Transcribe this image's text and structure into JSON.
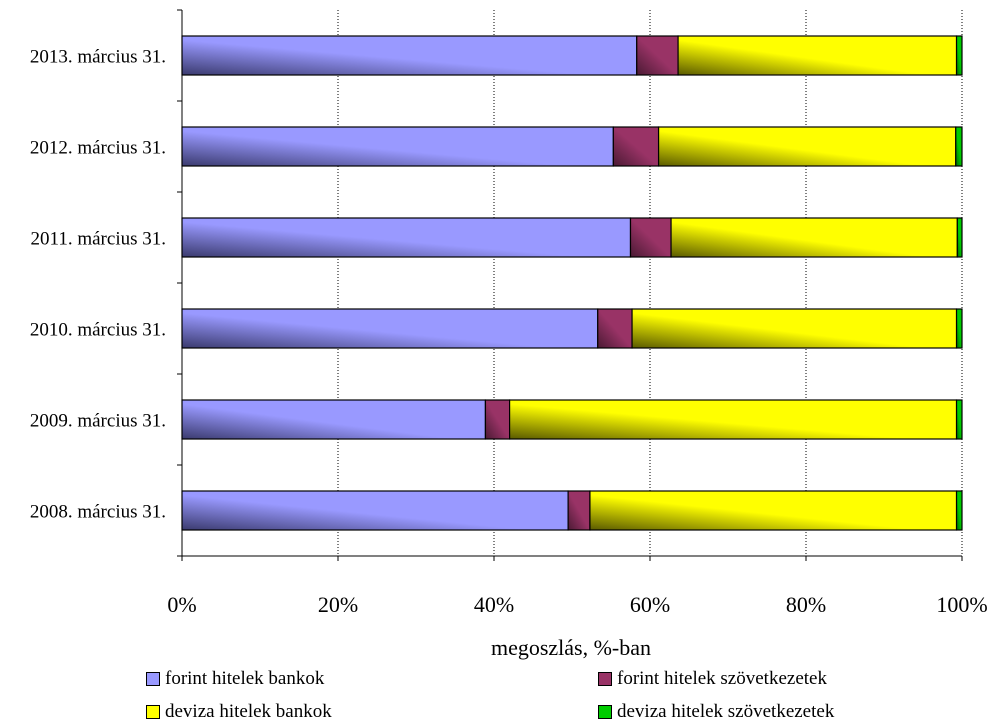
{
  "chart_data": {
    "type": "bar",
    "orientation": "horizontal",
    "stacked": "percent",
    "categories": [
      "2013. március 31.",
      "2012. március 31.",
      "2011. március 31.",
      "2010. március 31.",
      "2009. március 31.",
      "2008. március 31."
    ],
    "series": [
      {
        "name": "forint hitelek bankok",
        "color": "#9999ff",
        "values": [
          58.3,
          55.3,
          57.5,
          53.3,
          38.9,
          49.5
        ]
      },
      {
        "name": "forint hitelek szövetkezetek",
        "color": "#993366",
        "values": [
          5.3,
          5.8,
          5.2,
          4.4,
          3.1,
          2.8
        ]
      },
      {
        "name": "deviza hitelek bankok",
        "color": "#ffff00",
        "values": [
          35.7,
          38.1,
          36.7,
          41.6,
          57.3,
          47.0
        ]
      },
      {
        "name": "deviza hitelek szövetkezetek",
        "color": "#00cc00",
        "values": [
          0.7,
          0.8,
          0.6,
          0.7,
          0.7,
          0.7
        ]
      }
    ],
    "xlabel": "megoszlás, %-ban",
    "xlim": [
      0,
      100
    ],
    "x_ticks": [
      "0%",
      "20%",
      "40%",
      "60%",
      "80%",
      "100%"
    ],
    "grid": "vertical dotted",
    "legend_position": "bottom"
  }
}
